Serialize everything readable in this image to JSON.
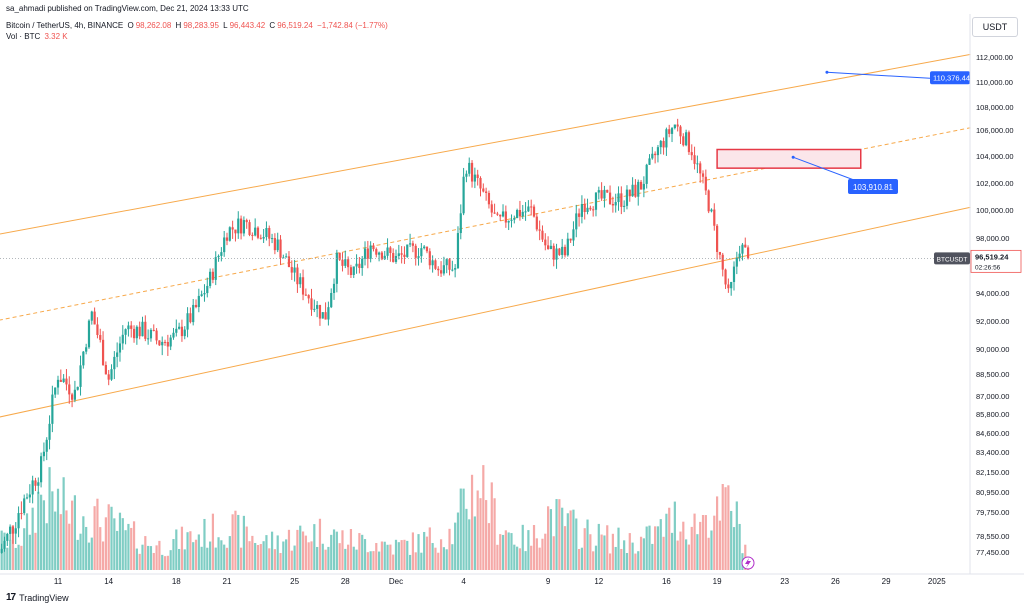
{
  "header": {
    "published": "sa_ahmadi published on TradingView.com, Dec 21, 2024 13:33 UTC",
    "symbol": "Bitcoin / TetherUS, 4h, BINANCE",
    "ohlc": {
      "open_label": "O",
      "open": "98,262.08",
      "high_label": "H",
      "high": "98,283.95",
      "low_label": "L",
      "low": "96,443.42",
      "close_label": "C",
      "close": "96,519.24",
      "change": "−1,742.84 (−1.77%)"
    },
    "volume_label": "Vol · BTC",
    "volume_value": "3.32 K"
  },
  "price_axis": {
    "currency": "USDT",
    "labels": [
      {
        "price": 112000,
        "text": "112,000.00"
      },
      {
        "price": 110000,
        "text": "110,000.00"
      },
      {
        "price": 108000,
        "text": "108,000.00"
      },
      {
        "price": 106000,
        "text": "106,000.00"
      },
      {
        "price": 104000,
        "text": "104,000.00"
      },
      {
        "price": 102000,
        "text": "102,000.00"
      },
      {
        "price": 100000,
        "text": "100,000.00"
      },
      {
        "price": 98000,
        "text": "98,000.00"
      },
      {
        "price": 94000,
        "text": "94,000.00"
      },
      {
        "price": 92000,
        "text": "92,000.00"
      },
      {
        "price": 90000,
        "text": "90,000.00"
      },
      {
        "price": 88500,
        "text": "88,500.00"
      },
      {
        "price": 87000,
        "text": "87,000.00"
      },
      {
        "price": 85800,
        "text": "85,800.00"
      },
      {
        "price": 84600,
        "text": "84,600.00"
      },
      {
        "price": 83400,
        "text": "83,400.00"
      },
      {
        "price": 82150,
        "text": "82,150.00"
      },
      {
        "price": 80950,
        "text": "80,950.00"
      },
      {
        "price": 79750,
        "text": "79,750.00"
      },
      {
        "price": 78550,
        "text": "78,550.00"
      },
      {
        "price": 77450,
        "text": "77,450.00"
      }
    ],
    "last_price": {
      "symbol": "BTCUSDT",
      "price": "96,519.24",
      "countdown": "02:26:56"
    }
  },
  "time_axis": [
    {
      "day": 11,
      "text": "11"
    },
    {
      "day": 14,
      "text": "14"
    },
    {
      "day": 18,
      "text": "18"
    },
    {
      "day": 21,
      "text": "21"
    },
    {
      "day": 25,
      "text": "25"
    },
    {
      "day": 28,
      "text": "28"
    },
    {
      "day": 31,
      "text": "Dec"
    },
    {
      "day": 35,
      "text": "4"
    },
    {
      "day": 40,
      "text": "9"
    },
    {
      "day": 43,
      "text": "12"
    },
    {
      "day": 47,
      "text": "16"
    },
    {
      "day": 50,
      "text": "19"
    },
    {
      "day": 54,
      "text": "23"
    },
    {
      "day": 57,
      "text": "26"
    },
    {
      "day": 60,
      "text": "29"
    },
    {
      "day": 63,
      "text": "2025"
    }
  ],
  "annotations": {
    "target_high": "110,376.44",
    "target_mid": "103,910.81"
  },
  "colors": {
    "up": "#26a69a",
    "down": "#ef5350",
    "vol_up": "#7fcdc4",
    "vol_down": "#f5a9a7",
    "channel": "#f7a94b",
    "label_blue": "#2962ff",
    "zone_border": "#e63946",
    "zone_fill": "#fbe6ea"
  },
  "footer": {
    "brand": "TradingView"
  },
  "chart_data": {
    "type": "candlestick",
    "title": "Bitcoin / TetherUS, 4h, BINANCE",
    "x_unit": "day (Nov 1 = 1; Dec = 31+)",
    "anchors": [
      {
        "day": 7.5,
        "price": 77400,
        "vol": 0.3
      },
      {
        "day": 9.0,
        "price": 80500,
        "vol": 0.35
      },
      {
        "day": 10.0,
        "price": 82500,
        "vol": 0.8
      },
      {
        "day": 11.0,
        "price": 88500,
        "vol": 0.7
      },
      {
        "day": 12.0,
        "price": 87200,
        "vol": 0.6
      },
      {
        "day": 13.0,
        "price": 92500,
        "vol": 0.55
      },
      {
        "day": 14.0,
        "price": 88200,
        "vol": 0.5
      },
      {
        "day": 15.0,
        "price": 91500,
        "vol": 0.4
      },
      {
        "day": 16.0,
        "price": 91300,
        "vol": 0.3
      },
      {
        "day": 17.0,
        "price": 90500,
        "vol": 0.25
      },
      {
        "day": 18.0,
        "price": 90900,
        "vol": 0.3
      },
      {
        "day": 19.0,
        "price": 92500,
        "vol": 0.35
      },
      {
        "day": 20.0,
        "price": 95000,
        "vol": 0.4
      },
      {
        "day": 21.0,
        "price": 98500,
        "vol": 0.45
      },
      {
        "day": 22.0,
        "price": 99100,
        "vol": 0.4
      },
      {
        "day": 23.0,
        "price": 98500,
        "vol": 0.3
      },
      {
        "day": 24.0,
        "price": 97500,
        "vol": 0.3
      },
      {
        "day": 25.0,
        "price": 95200,
        "vol": 0.35
      },
      {
        "day": 26.0,
        "price": 93500,
        "vol": 0.4
      },
      {
        "day": 26.8,
        "price": 92200,
        "vol": 0.4
      },
      {
        "day": 27.5,
        "price": 96300,
        "vol": 0.35
      },
      {
        "day": 28.5,
        "price": 95300,
        "vol": 0.3
      },
      {
        "day": 29.5,
        "price": 97500,
        "vol": 0.3
      },
      {
        "day": 31.0,
        "price": 96500,
        "vol": 0.25
      },
      {
        "day": 32.5,
        "price": 97300,
        "vol": 0.3
      },
      {
        "day": 33.5,
        "price": 95800,
        "vol": 0.35
      },
      {
        "day": 34.5,
        "price": 95800,
        "vol": 0.4
      },
      {
        "day": 35.1,
        "price": 103500,
        "vol": 0.75
      },
      {
        "day": 36.0,
        "price": 101500,
        "vol": 0.95
      },
      {
        "day": 37.0,
        "price": 99000,
        "vol": 0.5
      },
      {
        "day": 38.0,
        "price": 99800,
        "vol": 0.35
      },
      {
        "day": 39.0,
        "price": 100000,
        "vol": 0.3
      },
      {
        "day": 40.0,
        "price": 97000,
        "vol": 0.6
      },
      {
        "day": 41.0,
        "price": 96800,
        "vol": 0.5
      },
      {
        "day": 42.0,
        "price": 100500,
        "vol": 0.4
      },
      {
        "day": 43.0,
        "price": 100800,
        "vol": 0.35
      },
      {
        "day": 44.5,
        "price": 100800,
        "vol": 0.3
      },
      {
        "day": 45.5,
        "price": 101800,
        "vol": 0.3
      },
      {
        "day": 46.5,
        "price": 104500,
        "vol": 0.4
      },
      {
        "day": 47.5,
        "price": 106500,
        "vol": 0.55
      },
      {
        "day": 48.5,
        "price": 104500,
        "vol": 0.45
      },
      {
        "day": 49.5,
        "price": 100500,
        "vol": 0.6
      },
      {
        "day": 50.0,
        "price": 97500,
        "vol": 0.55
      },
      {
        "day": 50.7,
        "price": 93500,
        "vol": 0.75
      },
      {
        "day": 51.3,
        "price": 97500,
        "vol": 0.45
      },
      {
        "day": 51.9,
        "price": 96519,
        "vol": 0.1
      }
    ],
    "channel": {
      "upper": [
        {
          "day": 1,
          "price": 96800
        },
        {
          "day": 65,
          "price": 112200
        }
      ],
      "middle": [
        {
          "day": 1,
          "price": 90500
        },
        {
          "day": 65,
          "price": 106200
        }
      ],
      "lower": [
        {
          "day": 1,
          "price": 84100
        },
        {
          "day": 65,
          "price": 100200
        }
      ]
    },
    "zone": {
      "day_start": 50.0,
      "day_end": 58.5,
      "price_top": 104500,
      "price_bottom": 103100
    },
    "targets": [
      {
        "day": 56.5,
        "price": 110376.44
      },
      {
        "day": 54.5,
        "price": 103910.81
      }
    ],
    "current_price": 96519.24
  }
}
